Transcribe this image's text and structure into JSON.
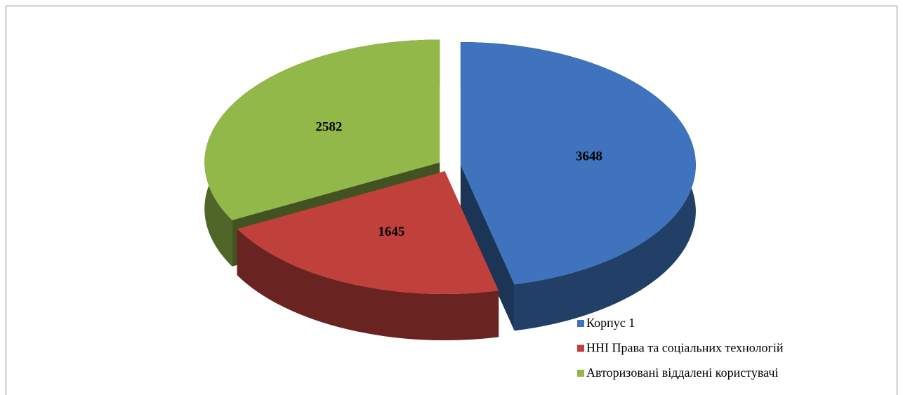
{
  "chart_data": {
    "type": "pie",
    "categories": [
      "Корпус 1",
      "ННІ Права та соціальних технологій",
      "Авторизовані віддалені користувачі"
    ],
    "values": [
      3648,
      1645,
      2582
    ],
    "colors": [
      "#3f73bd",
      "#c0403c",
      "#93b84a"
    ],
    "legend": "bottom-right"
  }
}
